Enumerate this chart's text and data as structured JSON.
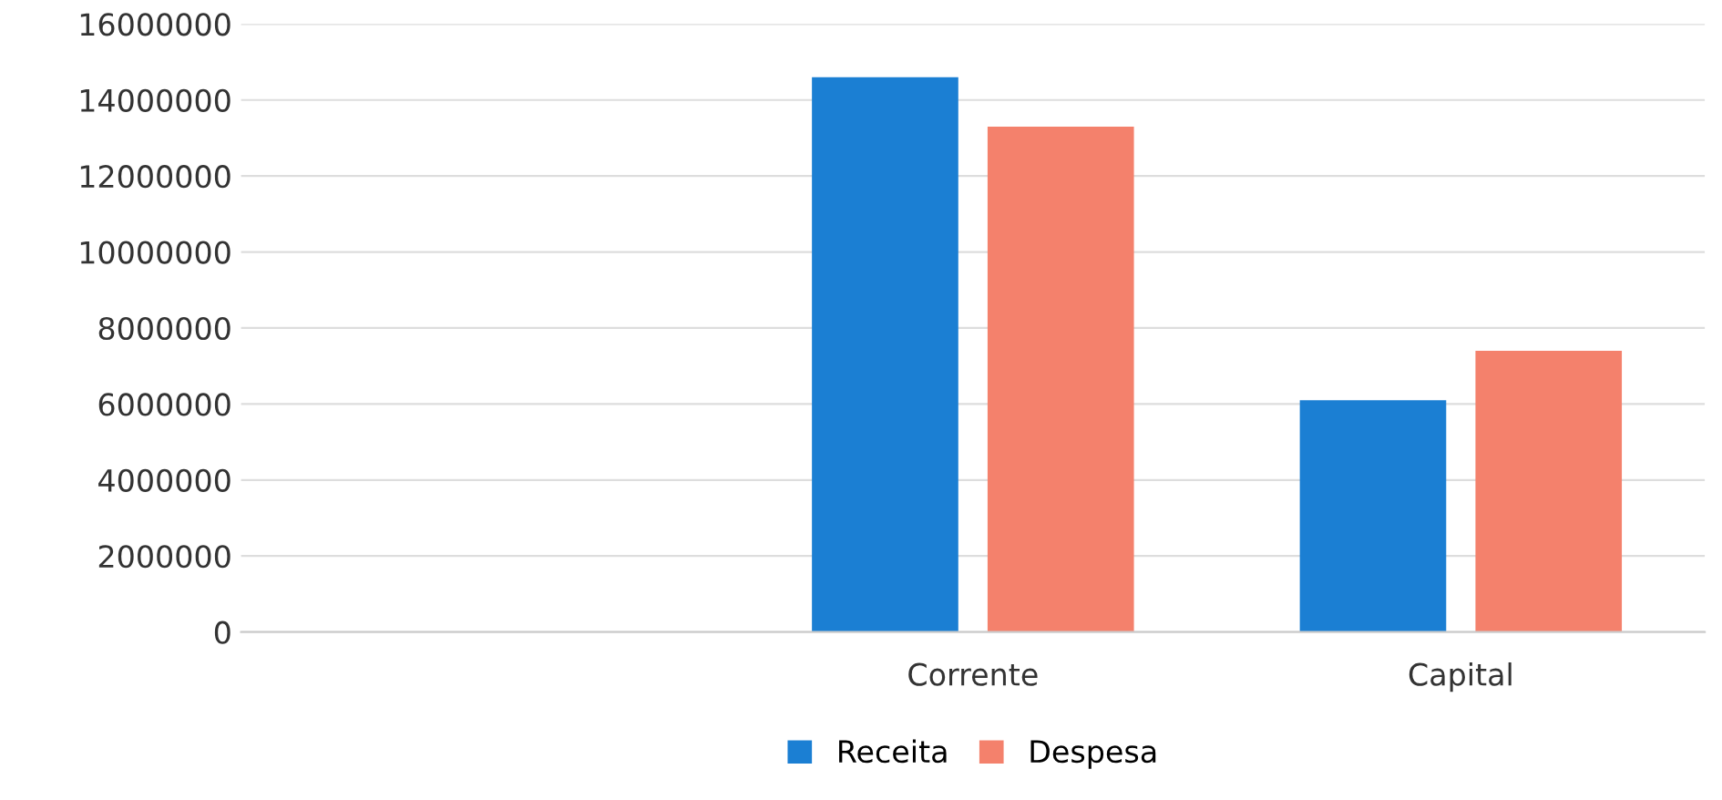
{
  "chart_data": {
    "type": "bar",
    "categories": [
      null,
      "Corrente",
      "Capital"
    ],
    "series": [
      {
        "name": "Receita",
        "color": "#1b7fd3",
        "values": [
          null,
          14600000,
          6100000
        ]
      },
      {
        "name": "Despesa",
        "color": "#f4816c",
        "values": [
          null,
          13300000,
          7400000
        ]
      }
    ],
    "ylim": [
      0,
      16000000
    ],
    "yticks": [
      0,
      2000000,
      4000000,
      6000000,
      8000000,
      10000000,
      12000000,
      14000000,
      16000000
    ],
    "grid": "y",
    "legend": "bottom"
  }
}
